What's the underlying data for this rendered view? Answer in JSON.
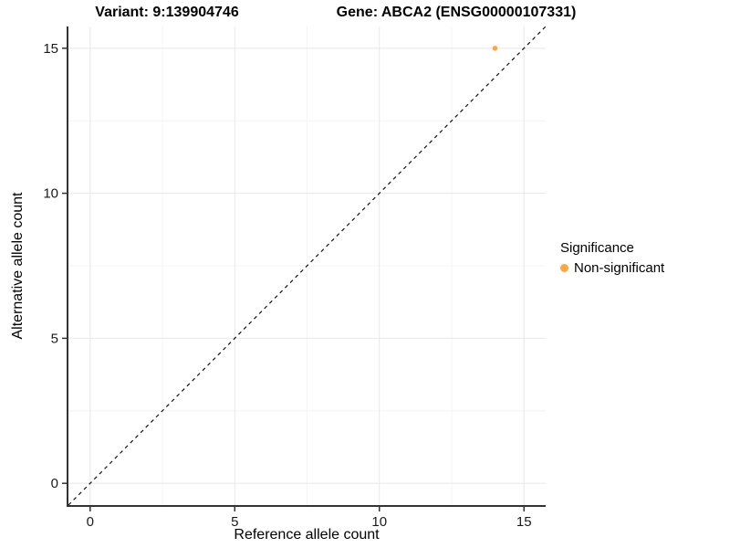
{
  "titles": {
    "left": "Variant: 9:139904746",
    "right": "Gene: ABCA2 (ENSG00000107331)"
  },
  "chart_data": {
    "type": "scatter",
    "title": "Variant: 9:139904746   Gene: ABCA2 (ENSG00000107331)",
    "xlabel": "Reference allele count",
    "ylabel": "Alternative allele count",
    "xlim": [
      -0.75,
      15.75
    ],
    "ylim": [
      -0.75,
      15.75
    ],
    "x_ticks": [
      0,
      5,
      10,
      15
    ],
    "y_ticks": [
      0,
      5,
      10,
      15
    ],
    "x_minor": [
      2.5,
      7.5,
      12.5
    ],
    "y_minor": [
      2.5,
      7.5,
      12.5
    ],
    "grid": true,
    "identity_line": {
      "style": "dashed",
      "slope": 1,
      "intercept": 0,
      "from": [
        -0.75,
        -0.75
      ],
      "to": [
        15.75,
        15.75
      ]
    },
    "series": [
      {
        "name": "Non-significant",
        "color": "#FFA640",
        "points": [
          {
            "x": 14,
            "y": 15
          }
        ]
      }
    ],
    "legend": {
      "title": "Significance",
      "position": "right",
      "items": [
        {
          "label": "Non-significant",
          "color": "#FFA640"
        }
      ]
    }
  },
  "colors": {
    "axis": "#333333",
    "grid_major": "#e8e8e8",
    "grid_minor": "#f4f4f4",
    "tick_text": "#1a1a1a",
    "identity_line": "#111111"
  }
}
